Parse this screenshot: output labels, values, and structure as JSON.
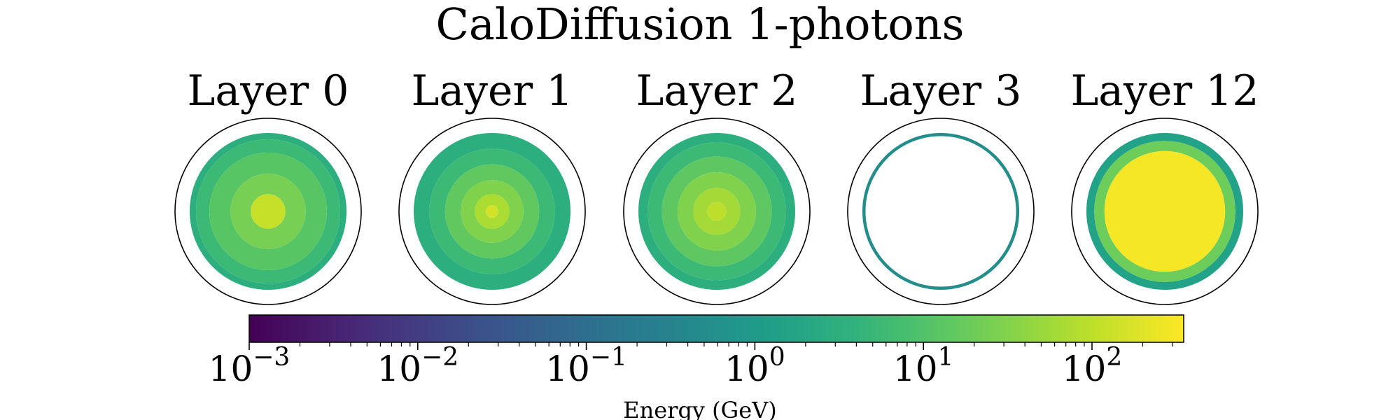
{
  "chart_data": {
    "type": "heatmap",
    "title": "CaloDiffusion 1-photons",
    "panels": [
      {
        "title": "Layer 0",
        "rings": [
          {
            "r_frac": [
              0.0,
              0.22
            ],
            "energy_gev": 120
          },
          {
            "r_frac": [
              0.22,
              0.48
            ],
            "energy_gev": 25
          },
          {
            "r_frac": [
              0.48,
              0.75
            ],
            "energy_gev": 12
          },
          {
            "r_frac": [
              0.75,
              0.92
            ],
            "energy_gev": 6
          },
          {
            "r_frac": [
              0.92,
              1.0
            ],
            "energy_gev": 3
          }
        ]
      },
      {
        "title": "Layer 1",
        "rings": [
          {
            "r_frac": [
              0.0,
              0.08
            ],
            "energy_gev": 150
          },
          {
            "r_frac": [
              0.08,
              0.22
            ],
            "energy_gev": 70
          },
          {
            "r_frac": [
              0.22,
              0.4
            ],
            "energy_gev": 30
          },
          {
            "r_frac": [
              0.4,
              0.6
            ],
            "energy_gev": 15
          },
          {
            "r_frac": [
              0.6,
              0.8
            ],
            "energy_gev": 6
          },
          {
            "r_frac": [
              0.8,
              1.0
            ],
            "energy_gev": 3
          }
        ]
      },
      {
        "title": "Layer 2",
        "rings": [
          {
            "r_frac": [
              0.0,
              0.12
            ],
            "energy_gev": 100
          },
          {
            "r_frac": [
              0.12,
              0.3
            ],
            "energy_gev": 60
          },
          {
            "r_frac": [
              0.3,
              0.5
            ],
            "energy_gev": 30
          },
          {
            "r_frac": [
              0.5,
              0.7
            ],
            "energy_gev": 14
          },
          {
            "r_frac": [
              0.7,
              0.88
            ],
            "energy_gev": 6
          },
          {
            "r_frac": [
              0.88,
              1.0
            ],
            "energy_gev": 3
          }
        ]
      },
      {
        "title": "Layer 3",
        "rings": [
          {
            "r_frac": [
              0.96,
              1.0
            ],
            "energy_gev": 0.5
          }
        ]
      },
      {
        "title": "Layer 12",
        "rings": [
          {
            "r_frac": [
              0.0,
              0.77
            ],
            "energy_gev": 300
          },
          {
            "r_frac": [
              0.77,
              0.9
            ],
            "energy_gev": 20
          },
          {
            "r_frac": [
              0.9,
              1.0
            ],
            "energy_gev": 1.5
          }
        ]
      }
    ],
    "colorbar": {
      "scale": "log",
      "range_gev": [
        0.001,
        350
      ],
      "ticks": [
        {
          "base": "10",
          "exp": "−3",
          "value": 0.001
        },
        {
          "base": "10",
          "exp": "−2",
          "value": 0.01
        },
        {
          "base": "10",
          "exp": "−1",
          "value": 0.1
        },
        {
          "base": "10",
          "exp": "0",
          "value": 1
        },
        {
          "base": "10",
          "exp": "1",
          "value": 10
        },
        {
          "base": "10",
          "exp": "2",
          "value": 100
        }
      ],
      "label": "Energy (GeV)",
      "colormap": "viridis"
    }
  }
}
